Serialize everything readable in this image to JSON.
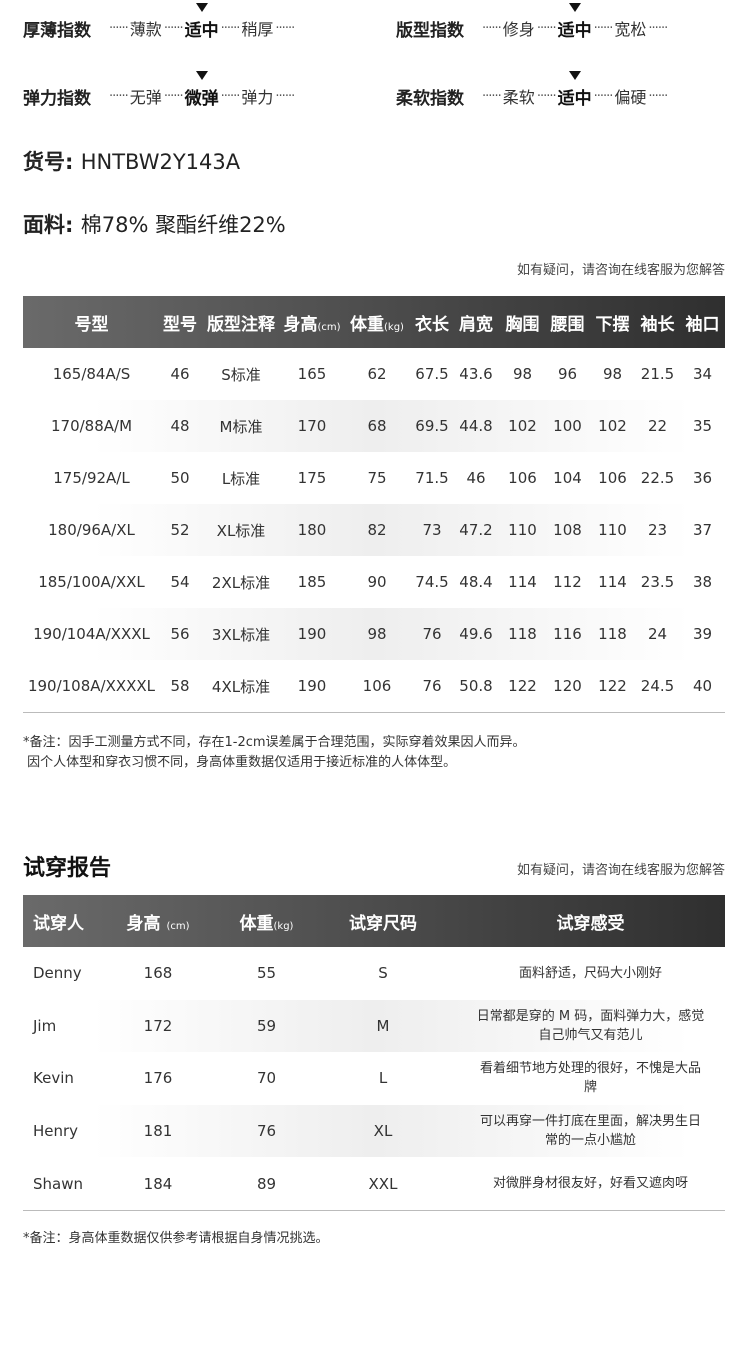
{
  "indices": [
    {
      "label": "厚薄指数",
      "options": [
        "薄款",
        "适中",
        "稍厚"
      ],
      "selected": 1
    },
    {
      "label": "版型指数",
      "options": [
        "修身",
        "适中",
        "宽松"
      ],
      "selected": 1
    },
    {
      "label": "弹力指数",
      "options": [
        "无弹",
        "微弹",
        "弹力"
      ],
      "selected": 1
    },
    {
      "label": "柔软指数",
      "options": [
        "柔软",
        "适中",
        "偏硬"
      ],
      "selected": 1
    }
  ],
  "product": {
    "sku_label": "货号:",
    "sku": "HNTBW2Y143A",
    "fabric_label": "面料:",
    "fabric": "棉78%  聚酯纤维22%"
  },
  "hint": "如有疑问，请咨询在线客服为您解答",
  "size_table": {
    "headers": [
      "号型",
      "型号",
      "版型注释",
      "身高",
      "体重",
      "衣长",
      "肩宽",
      "胸围",
      "腰围",
      "下摆",
      "袖长",
      "袖口"
    ],
    "units": {
      "height": "(cm)",
      "weight": "(kg)"
    },
    "rows": [
      [
        "165/84A/S",
        "46",
        "S标准",
        "165",
        "62",
        "67.5",
        "43.6",
        "98",
        "96",
        "98",
        "21.5",
        "34"
      ],
      [
        "170/88A/M",
        "48",
        "M标准",
        "170",
        "68",
        "69.5",
        "44.8",
        "102",
        "100",
        "102",
        "22",
        "35"
      ],
      [
        "175/92A/L",
        "50",
        "L标准",
        "175",
        "75",
        "71.5",
        "46",
        "106",
        "104",
        "106",
        "22.5",
        "36"
      ],
      [
        "180/96A/XL",
        "52",
        "XL标准",
        "180",
        "82",
        "73",
        "47.2",
        "110",
        "108",
        "110",
        "23",
        "37"
      ],
      [
        "185/100A/XXL",
        "54",
        "2XL标准",
        "185",
        "90",
        "74.5",
        "48.4",
        "114",
        "112",
        "114",
        "23.5",
        "38"
      ],
      [
        "190/104A/XXXL",
        "56",
        "3XL标准",
        "190",
        "98",
        "76",
        "49.6",
        "118",
        "116",
        "118",
        "24",
        "39"
      ],
      [
        "190/108A/XXXXL",
        "58",
        "4XL标准",
        "190",
        "106",
        "76",
        "50.8",
        "122",
        "120",
        "122",
        "24.5",
        "40"
      ]
    ],
    "note1": "*备注：因手工测量方式不同，存在1-2cm误差属于合理范围，实际穿着效果因人而异。",
    "note2": " 因个人体型和穿衣习惯不同，身高体重数据仅适用于接近标准的人体体型。"
  },
  "trial": {
    "title": "试穿报告",
    "headers": [
      "试穿人",
      "身高",
      "体重",
      "试穿尺码",
      "试穿感受"
    ],
    "units": {
      "height": "(cm)",
      "weight": "(kg)"
    },
    "rows": [
      [
        "Denny",
        "168",
        "55",
        "S",
        "面料舒适，尺码大小刚好"
      ],
      [
        "Jim",
        "172",
        "59",
        "M",
        "日常都是穿的 M 码，面料弹力大，感觉自己帅气又有范儿"
      ],
      [
        "Kevin",
        "176",
        "70",
        "L",
        "看着细节地方处理的很好，不愧是大品牌"
      ],
      [
        "Henry",
        "181",
        "76",
        "XL",
        "可以再穿一件打底在里面，解决男生日常的一点小尴尬"
      ],
      [
        "Shawn",
        "184",
        "89",
        "XXL",
        "对微胖身材很友好，好看又遮肉呀"
      ]
    ],
    "note": "*备注：身高体重数据仅供参考请根据自身情况挑选。"
  }
}
